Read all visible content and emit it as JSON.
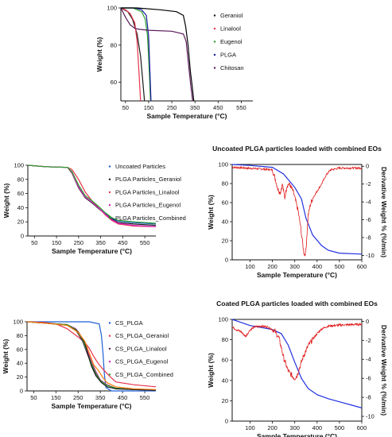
{
  "chart_data": [
    {
      "id": "p1",
      "type": "line",
      "title": "",
      "xlabel": "Sample Temperature (°C)",
      "ylabel": "Weight (%)",
      "xlim": [
        30,
        600
      ],
      "ylim": [
        50,
        100
      ],
      "xticks": [
        50,
        150,
        250,
        350,
        450,
        550
      ],
      "xtick_labels": [
        "50",
        "150",
        "250",
        "350",
        "450",
        "550"
      ],
      "yticks": [
        60,
        80,
        100
      ],
      "ytick_labels": [
        "60",
        "80",
        "100"
      ],
      "legend_position": "right",
      "series": [
        {
          "name": "Geraniol",
          "color": "#1a1a1a",
          "x": [
            30,
            60,
            80,
            100,
            115,
            125,
            132
          ],
          "y": [
            100,
            98,
            94,
            86,
            74,
            60,
            50
          ]
        },
        {
          "name": "Linalool",
          "color": "#e8334a",
          "x": [
            30,
            50,
            70,
            90,
            100,
            108,
            115
          ],
          "y": [
            100,
            99,
            97,
            92,
            82,
            66,
            50
          ]
        },
        {
          "name": "Eugenol",
          "color": "#2ca02c",
          "x": [
            30,
            80,
            120,
            135,
            145,
            152,
            158
          ],
          "y": [
            100,
            100,
            98,
            94,
            85,
            68,
            50
          ]
        },
        {
          "name": "PLGA",
          "color": "#1a1aa0",
          "x": [
            30,
            90,
            120,
            140,
            150,
            160
          ],
          "y": [
            100,
            100,
            99,
            96,
            85,
            50
          ]
        },
        {
          "name": "Chitosan",
          "color": "#5a1a5a",
          "x": [
            30,
            50,
            70,
            90,
            110,
            150,
            250,
            300,
            312,
            322,
            332,
            340
          ],
          "y": [
            100,
            95,
            91,
            89,
            88.5,
            88,
            87.5,
            86,
            82,
            70,
            58,
            50
          ]
        },
        {
          "name": "",
          "color": "#000000",
          "x": [
            30,
            100,
            200,
            270,
            300,
            310,
            320,
            330,
            338,
            345
          ],
          "y": [
            100,
            100,
            99,
            98,
            96,
            90,
            80,
            66,
            58,
            50
          ]
        }
      ]
    },
    {
      "id": "p2",
      "type": "line",
      "title": "",
      "xlabel": "Sample Temperature (°C)",
      "ylabel": "Weight (%)",
      "xlim": [
        20,
        600
      ],
      "ylim": [
        0,
        100
      ],
      "xticks": [
        50,
        150,
        250,
        350,
        450,
        550
      ],
      "xtick_labels": [
        "50",
        "150",
        "250",
        "350",
        "450",
        "550"
      ],
      "yticks": [
        0,
        20,
        40,
        60,
        80,
        100
      ],
      "ytick_labels": [
        "0",
        "20",
        "40",
        "60",
        "80",
        "100"
      ],
      "legend_position": "right",
      "series": [
        {
          "name": "Uncoated Particles",
          "color": "#1f5fd6",
          "x": [
            20,
            100,
            200,
            220,
            250,
            280,
            310,
            340,
            370,
            400,
            430,
            500,
            600
          ],
          "y": [
            100,
            98,
            97,
            90,
            70,
            55,
            48,
            40,
            32,
            25,
            21,
            19,
            17
          ]
        },
        {
          "name": "PLGA Particles_Geraniol",
          "color": "#1a1a1a",
          "x": [
            20,
            100,
            200,
            220,
            250,
            280,
            310,
            340,
            370,
            400,
            430,
            500,
            600
          ],
          "y": [
            100,
            98,
            97,
            89,
            68,
            54,
            47,
            39,
            31,
            24,
            19,
            17,
            15
          ]
        },
        {
          "name": "PLGA Particles_Linalool",
          "color": "#e8334a",
          "x": [
            20,
            100,
            200,
            220,
            250,
            280,
            310,
            340,
            370,
            400,
            430,
            500,
            600
          ],
          "y": [
            100,
            98,
            97,
            94,
            80,
            62,
            50,
            40,
            30,
            22,
            17,
            14,
            13
          ]
        },
        {
          "name": "PLGA Particles_Eugenol",
          "color": "#d826c0",
          "x": [
            20,
            100,
            200,
            220,
            250,
            280,
            310,
            340,
            370,
            400,
            430,
            500,
            600
          ],
          "y": [
            100,
            98,
            97,
            90,
            69,
            55,
            48,
            40,
            31,
            23,
            18,
            15,
            13
          ]
        },
        {
          "name": "PLGA Particles_Combined",
          "color": "#2ca02c",
          "x": [
            20,
            100,
            200,
            220,
            250,
            280,
            310,
            340,
            370,
            400,
            430,
            500,
            600
          ],
          "y": [
            100,
            98,
            97,
            91,
            72,
            57,
            50,
            42,
            33,
            26,
            22,
            20,
            18
          ]
        }
      ]
    },
    {
      "id": "p3",
      "type": "line",
      "title": "Uncoated PLGA particles loaded with combined EOs",
      "xlabel": "Sample Temperature (°C)",
      "ylabel": "Weight (%)",
      "ylabel2": "Derivative Weight % (%/min)",
      "xlim": [
        20,
        600
      ],
      "ylim": [
        0,
        100
      ],
      "ylim2": [
        -10.5,
        0.2
      ],
      "xticks": [
        100,
        200,
        300,
        400,
        500,
        600
      ],
      "xtick_labels": [
        "100",
        "200",
        "300",
        "400",
        "500",
        "600"
      ],
      "yticks": [
        0,
        20,
        40,
        60,
        80,
        100
      ],
      "ytick_labels": [
        "0",
        "20",
        "40",
        "60",
        "80",
        "100"
      ],
      "yticks2": [
        0,
        -2,
        -4,
        -6,
        -8,
        -10
      ],
      "ytick_labels2": [
        "0",
        "-2",
        "-4",
        "-6",
        "-8",
        "-10"
      ],
      "series": [
        {
          "name": "",
          "axis": "left",
          "color": "#2030e0",
          "x": [
            20,
            100,
            200,
            250,
            300,
            330,
            350,
            380,
            420,
            450,
            500,
            600
          ],
          "y": [
            100,
            99,
            97,
            90,
            76,
            64,
            44,
            26,
            15,
            10,
            7,
            6
          ]
        },
        {
          "name": "",
          "axis": "right",
          "color": "#e01818",
          "noisy": true,
          "x": [
            20,
            80,
            150,
            200,
            215,
            225,
            235,
            245,
            255,
            265,
            275,
            285,
            295,
            305,
            315,
            325,
            335,
            340,
            345,
            350,
            355,
            360,
            370,
            380,
            400,
            420,
            440,
            460,
            500,
            600
          ],
          "y": [
            -0.1,
            -0.2,
            -0.3,
            -0.4,
            -1.6,
            -2.6,
            -3.0,
            -2.0,
            -3.6,
            -2.2,
            -2.0,
            -2.4,
            -3.0,
            -4.0,
            -5.0,
            -6.6,
            -8.5,
            -9.6,
            -10.0,
            -9.4,
            -7.5,
            -5.5,
            -4.3,
            -3.6,
            -2.8,
            -2.0,
            -1.0,
            -0.4,
            -0.2,
            -0.2
          ]
        }
      ]
    },
    {
      "id": "p4",
      "type": "line",
      "title": "",
      "xlabel": "Sample Temperature (°C)",
      "ylabel": "Weight (%)",
      "xlim": [
        20,
        600
      ],
      "ylim": [
        0,
        100
      ],
      "xticks": [
        50,
        150,
        250,
        350,
        450,
        550
      ],
      "xtick_labels": [
        "50",
        "150",
        "250",
        "350",
        "450",
        "550"
      ],
      "yticks": [
        0,
        20,
        40,
        60,
        80,
        100
      ],
      "ytick_labels": [
        "0",
        "20",
        "40",
        "60",
        "80",
        "100"
      ],
      "legend_position": "right",
      "series": [
        {
          "name": "CS_PLGA",
          "color": "#1f5fd6",
          "x": [
            20,
            100,
            200,
            300,
            345,
            355,
            362,
            368,
            375,
            400,
            600
          ],
          "y": [
            100,
            100,
            100,
            100,
            97,
            80,
            55,
            25,
            5,
            0,
            0
          ]
        },
        {
          "name": "CS_PLGA_Geraniol",
          "color": "#e8334a",
          "x": [
            20,
            100,
            150,
            200,
            250,
            280,
            300,
            320,
            340,
            360,
            390,
            420,
            500,
            600
          ],
          "y": [
            100,
            99,
            97,
            90,
            78,
            70,
            62,
            50,
            40,
            32,
            22,
            13,
            9,
            6
          ]
        },
        {
          "name": "CS_PLGA_Linalool",
          "color": "#5a1a5a",
          "x": [
            20,
            100,
            200,
            240,
            270,
            290,
            310,
            330,
            350,
            380,
            420,
            500,
            600
          ],
          "y": [
            100,
            98,
            96,
            88,
            72,
            55,
            38,
            25,
            15,
            8,
            4,
            2,
            1
          ]
        },
        {
          "name": "CS_PLGA_Eugenol",
          "color": "#d826c0",
          "x": [
            20,
            100,
            200,
            240,
            270,
            290,
            310,
            330,
            350,
            380,
            420,
            500,
            600
          ],
          "y": [
            100,
            98,
            96,
            90,
            76,
            60,
            43,
            28,
            16,
            9,
            4,
            2,
            1
          ]
        },
        {
          "name": "CS_PLGA_Combined",
          "color": "#2ca02c",
          "x": [
            20,
            100,
            200,
            240,
            270,
            290,
            310,
            330,
            350,
            380,
            420,
            500,
            600
          ],
          "y": [
            100,
            98,
            96,
            89,
            74,
            57,
            40,
            26,
            15,
            8,
            4,
            2,
            1
          ]
        },
        {
          "name": "",
          "color": "#1a1a1a",
          "x": [
            20,
            100,
            200,
            250,
            280,
            295,
            310,
            330,
            355,
            380,
            420,
            500,
            600
          ],
          "y": [
            100,
            98,
            95,
            86,
            70,
            52,
            36,
            22,
            12,
            6,
            3,
            2,
            1
          ]
        },
        {
          "name": "",
          "color": "#ff7f0e",
          "x": [
            20,
            100,
            200,
            250,
            280,
            300,
            320,
            340,
            360,
            380,
            420,
            500,
            600
          ],
          "y": [
            100,
            98,
            95,
            85,
            72,
            55,
            38,
            30,
            20,
            12,
            6,
            3,
            2
          ]
        }
      ]
    },
    {
      "id": "p5",
      "type": "line",
      "title": "Coated PLGA particles loaded with combined EOs",
      "xlabel": "Sample Temperature (°C)",
      "ylabel": "Weight (%)",
      "ylabel2": "Derivative Weight % (%/min)",
      "xlim": [
        20,
        600
      ],
      "ylim": [
        0,
        100
      ],
      "ylim2": [
        -10.5,
        0.2
      ],
      "xticks": [
        100,
        200,
        300,
        400,
        500,
        600
      ],
      "xtick_labels": [
        "100",
        "200",
        "300",
        "400",
        "500",
        "600"
      ],
      "yticks": [
        0,
        20,
        40,
        60,
        80,
        100
      ],
      "ytick_labels": [
        "0",
        "20",
        "40",
        "60",
        "80",
        "100"
      ],
      "yticks2": [
        0,
        -2,
        -4,
        -6,
        -8,
        -10
      ],
      "ytick_labels2": [
        "0",
        "-2",
        "-4",
        "-6",
        "-8",
        "-10"
      ],
      "series": [
        {
          "name": "",
          "axis": "left",
          "color": "#2030e0",
          "x": [
            20,
            60,
            100,
            150,
            200,
            240,
            270,
            300,
            330,
            360,
            400,
            450,
            500,
            550,
            600
          ],
          "y": [
            100,
            97,
            94,
            92,
            90,
            86,
            75,
            58,
            42,
            32,
            26,
            22,
            19,
            16,
            13
          ]
        },
        {
          "name": "",
          "axis": "right",
          "color": "#e01818",
          "noisy": true,
          "x": [
            20,
            40,
            60,
            80,
            100,
            120,
            150,
            180,
            210,
            230,
            250,
            270,
            290,
            300,
            310,
            320,
            340,
            360,
            380,
            400,
            420,
            450,
            500,
            600
          ],
          "y": [
            -0.6,
            -0.9,
            -1.1,
            -1.6,
            -0.9,
            -0.6,
            -0.5,
            -0.6,
            -1.0,
            -1.8,
            -3.8,
            -5.2,
            -5.8,
            -6.0,
            -5.7,
            -5.0,
            -3.6,
            -2.6,
            -1.9,
            -1.3,
            -0.8,
            -0.5,
            -0.4,
            -0.3
          ]
        }
      ]
    }
  ]
}
